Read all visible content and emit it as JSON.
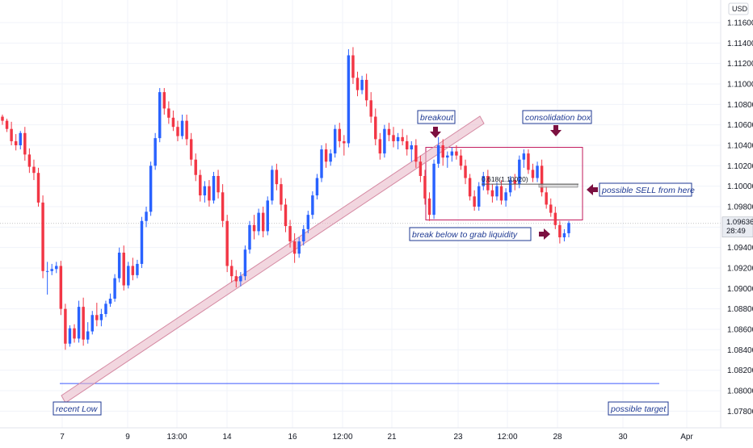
{
  "chart_data": {
    "type": "candlestick",
    "currency": "USD",
    "ylim": [
      1.077,
      1.1175
    ],
    "y_ticks": [
      "1.11600",
      "1.11400",
      "1.11200",
      "1.11000",
      "1.10800",
      "1.10600",
      "1.10400",
      "1.10200",
      "1.10000",
      "1.09800",
      "1.09600",
      "1.09400",
      "1.09200",
      "1.09000",
      "1.08800",
      "1.08600",
      "1.08400",
      "1.08200",
      "1.08000",
      "1.07800"
    ],
    "x_ticks": [
      "7",
      "9",
      "13:00",
      "14",
      "16",
      "12:00",
      "21",
      "23",
      "12:00",
      "28",
      "30",
      "Apr"
    ],
    "last_price": "1.09636",
    "countdown": "28:49",
    "fib_label": "0.618(1.10020)",
    "annotations": {
      "breakout": "breakout",
      "consolidation": "consolidation box",
      "sell": "possible SELL from here",
      "liquidity": "break below to grab liquidity",
      "recent_low": "recent Low",
      "target": "possible target"
    },
    "levels": {
      "recent_low": 1.0807,
      "sell_zone_top": 1.1002,
      "sell_zone_bottom": 1.0999,
      "consolidation_top": 1.1038,
      "consolidation_bottom": 1.0967
    },
    "colors": {
      "up": "#2962ff",
      "down": "#f23645",
      "trendline": "#e8b4c4",
      "box": "#c2185b",
      "annotation": "#1f3a93",
      "arrow": "#7b1040"
    },
    "ohlc": [
      [
        1.1068,
        1.107,
        1.106,
        1.1064
      ],
      [
        1.1064,
        1.1066,
        1.1053,
        1.1056
      ],
      [
        1.1056,
        1.1063,
        1.104,
        1.1044
      ],
      [
        1.1044,
        1.1051,
        1.1035,
        1.104
      ],
      [
        1.104,
        1.1054,
        1.1036,
        1.1052
      ],
      [
        1.1052,
        1.1058,
        1.1025,
        1.1031
      ],
      [
        1.1031,
        1.1037,
        1.1013,
        1.1019
      ],
      [
        1.1019,
        1.1026,
        1.1006,
        1.1013
      ],
      [
        1.1013,
        1.1018,
        1.098,
        1.0984
      ],
      [
        1.0984,
        1.0991,
        1.091,
        1.0917
      ],
      [
        1.0917,
        1.0926,
        1.0894,
        1.0917
      ],
      [
        1.0917,
        1.0924,
        1.0913,
        1.0919
      ],
      [
        1.0919,
        1.0926,
        1.0915,
        1.0922
      ],
      [
        1.0922,
        1.0927,
        1.0874,
        1.088
      ],
      [
        1.088,
        1.0885,
        1.084,
        1.0846
      ],
      [
        1.0846,
        1.0864,
        1.0843,
        1.0861
      ],
      [
        1.0861,
        1.0865,
        1.0847,
        1.0851
      ],
      [
        1.0851,
        1.0888,
        1.0847,
        1.0882
      ],
      [
        1.0882,
        1.0891,
        1.0844,
        1.085
      ],
      [
        1.085,
        1.0867,
        1.0846,
        1.0858
      ],
      [
        1.0858,
        1.0878,
        1.0855,
        1.0874
      ],
      [
        1.0874,
        1.0886,
        1.0863,
        1.0869
      ],
      [
        1.0869,
        1.088,
        1.0863,
        1.0875
      ],
      [
        1.0875,
        1.0888,
        1.0872,
        1.0885
      ],
      [
        1.0885,
        1.0895,
        1.0882,
        1.089
      ],
      [
        1.089,
        1.0914,
        1.0887,
        1.091
      ],
      [
        1.091,
        1.094,
        1.0906,
        1.0935
      ],
      [
        1.0935,
        1.0942,
        1.0898,
        1.0903
      ],
      [
        1.0903,
        1.0926,
        1.09,
        1.0922
      ],
      [
        1.0922,
        1.093,
        1.0908,
        1.0913
      ],
      [
        1.0913,
        1.0928,
        1.091,
        1.0924
      ],
      [
        1.0924,
        1.097,
        1.092,
        1.0966
      ],
      [
        1.0966,
        1.098,
        1.096,
        1.0975
      ],
      [
        1.0975,
        1.1024,
        1.0971,
        1.102
      ],
      [
        1.102,
        1.1052,
        1.1016,
        1.1047
      ],
      [
        1.1047,
        1.1096,
        1.1043,
        1.1092
      ],
      [
        1.1092,
        1.1096,
        1.107,
        1.1076
      ],
      [
        1.1076,
        1.1083,
        1.1061,
        1.1067
      ],
      [
        1.1067,
        1.1074,
        1.1054,
        1.1058
      ],
      [
        1.1058,
        1.1064,
        1.1044,
        1.1049
      ],
      [
        1.1049,
        1.107,
        1.1046,
        1.1064
      ],
      [
        1.1064,
        1.107,
        1.104,
        1.1046
      ],
      [
        1.1046,
        1.1052,
        1.102,
        1.1026
      ],
      [
        1.1026,
        1.1032,
        1.1005,
        1.1011
      ],
      [
        1.1011,
        1.1016,
        1.0985,
        1.0991
      ],
      [
        1.0991,
        1.1005,
        1.0984,
        1.1
      ],
      [
        1.1,
        1.1006,
        1.098,
        1.0986
      ],
      [
        1.0986,
        1.1014,
        1.0983,
        1.101
      ],
      [
        1.101,
        1.1016,
        1.0988,
        1.0994
      ],
      [
        1.0994,
        1.1002,
        1.096,
        1.0966
      ],
      [
        1.0966,
        1.0972,
        1.0916,
        1.0922
      ],
      [
        1.0922,
        1.0928,
        1.0906,
        1.0912
      ],
      [
        1.0912,
        1.0918,
        1.0901,
        1.0907
      ],
      [
        1.0907,
        1.0916,
        1.0902,
        1.0912
      ],
      [
        1.0912,
        1.0942,
        1.0908,
        1.0938
      ],
      [
        1.0938,
        1.0966,
        1.0934,
        1.0962
      ],
      [
        1.0962,
        1.0972,
        1.0948,
        1.0956
      ],
      [
        1.0956,
        1.0978,
        1.0952,
        1.0974
      ],
      [
        1.0974,
        1.098,
        1.095,
        1.0956
      ],
      [
        1.0956,
        1.099,
        1.0952,
        1.0986
      ],
      [
        1.0986,
        1.102,
        1.0982,
        1.1016
      ],
      [
        1.1016,
        1.1022,
        1.0996,
        1.1002
      ],
      [
        1.1002,
        1.1008,
        1.0976,
        1.0982
      ],
      [
        1.0982,
        1.0988,
        1.0955,
        1.0961
      ],
      [
        1.0961,
        1.0967,
        1.094,
        1.0946
      ],
      [
        1.0946,
        1.0954,
        1.0925,
        1.0934
      ],
      [
        1.0934,
        1.095,
        1.093,
        1.0946
      ],
      [
        1.0946,
        1.0962,
        1.0942,
        1.0958
      ],
      [
        1.0958,
        1.0976,
        1.0954,
        1.0972
      ],
      [
        1.0972,
        1.0995,
        1.0968,
        1.0991
      ],
      [
        1.0991,
        1.1012,
        1.0987,
        1.1008
      ],
      [
        1.1008,
        1.104,
        1.1004,
        1.1036
      ],
      [
        1.1036,
        1.1042,
        1.1018,
        1.1024
      ],
      [
        1.1024,
        1.1036,
        1.102,
        1.1032
      ],
      [
        1.1032,
        1.106,
        1.1028,
        1.1056
      ],
      [
        1.1056,
        1.1062,
        1.1038,
        1.1044
      ],
      [
        1.1044,
        1.105,
        1.103,
        1.1042
      ],
      [
        1.1042,
        1.1134,
        1.1038,
        1.1128
      ],
      [
        1.1128,
        1.1136,
        1.11,
        1.1106
      ],
      [
        1.1106,
        1.1112,
        1.1088,
        1.1094
      ],
      [
        1.1094,
        1.1108,
        1.109,
        1.1104
      ],
      [
        1.1104,
        1.111,
        1.1078,
        1.1084
      ],
      [
        1.1084,
        1.1092,
        1.1062,
        1.1068
      ],
      [
        1.1068,
        1.1076,
        1.104,
        1.1046
      ],
      [
        1.1046,
        1.1052,
        1.1026,
        1.1032
      ],
      [
        1.1032,
        1.106,
        1.1028,
        1.1056
      ],
      [
        1.1056,
        1.1062,
        1.1044,
        1.105
      ],
      [
        1.105,
        1.1058,
        1.1038,
        1.1044
      ],
      [
        1.1044,
        1.1052,
        1.1036,
        1.1048
      ],
      [
        1.1048,
        1.1056,
        1.104,
        1.1044
      ],
      [
        1.1044,
        1.105,
        1.103,
        1.1036
      ],
      [
        1.1036,
        1.1044,
        1.1024,
        1.104
      ],
      [
        1.104,
        1.1046,
        1.1018,
        1.1024
      ],
      [
        1.1024,
        1.103,
        1.1004,
        1.101
      ],
      [
        1.101,
        1.1016,
        1.0982,
        1.0988
      ],
      [
        1.0988,
        1.0994,
        1.0966,
        1.0972
      ],
      [
        1.0972,
        1.1026,
        1.0968,
        1.1022
      ],
      [
        1.1022,
        1.1048,
        1.1018,
        1.104
      ],
      [
        1.104,
        1.1046,
        1.102,
        1.1028
      ],
      [
        1.1028,
        1.1034,
        1.1018,
        1.103
      ],
      [
        1.103,
        1.1038,
        1.1024,
        1.1034
      ],
      [
        1.1034,
        1.104,
        1.1026,
        1.103
      ],
      [
        1.103,
        1.1036,
        1.1016,
        1.102
      ],
      [
        1.102,
        1.1026,
        1.1002,
        1.1008
      ],
      [
        1.1008,
        1.1012,
        1.0986,
        1.099
      ],
      [
        1.099,
        1.0996,
        1.0976,
        1.098
      ],
      [
        1.098,
        1.1004,
        1.0976,
        1.1
      ],
      [
        1.1,
        1.1014,
        1.0996,
        1.101
      ],
      [
        1.101,
        1.1016,
        1.0992,
        1.0996
      ],
      [
        1.0996,
        1.1002,
        1.0984,
        1.099
      ],
      [
        1.099,
        1.1004,
        1.0986,
        1.1
      ],
      [
        1.1,
        1.1006,
        1.0982,
        1.0986
      ],
      [
        1.0986,
        1.0998,
        1.098,
        1.0994
      ],
      [
        1.0994,
        1.101,
        1.099,
        1.1006
      ],
      [
        1.1006,
        1.1012,
        1.0996,
        1.1002
      ],
      [
        1.1002,
        1.103,
        1.0998,
        1.1026
      ],
      [
        1.1026,
        1.1036,
        1.1018,
        1.1032
      ],
      [
        1.1032,
        1.1036,
        1.1012,
        1.1016
      ],
      [
        1.1016,
        1.1022,
        1.1004,
        1.1008
      ],
      [
        1.1008,
        1.1024,
        1.1004,
        1.102
      ],
      [
        1.102,
        1.1026,
        1.099,
        1.0994
      ],
      [
        1.0994,
        1.1,
        1.0978,
        1.0982
      ],
      [
        1.0982,
        1.0988,
        1.097,
        1.0974
      ],
      [
        1.0974,
        1.098,
        1.0958,
        1.0962
      ],
      [
        1.0962,
        1.0966,
        1.0944,
        1.095
      ],
      [
        1.095,
        1.0958,
        1.0946,
        1.0954
      ],
      [
        1.0954,
        1.0966,
        1.095,
        1.0964
      ]
    ]
  }
}
